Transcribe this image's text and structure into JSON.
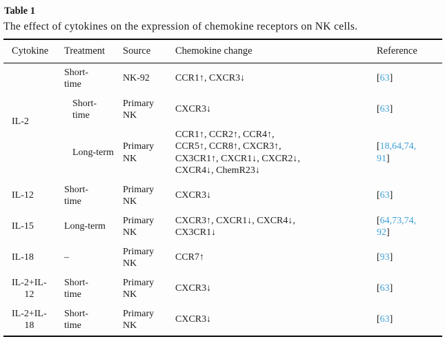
{
  "theme": {
    "link_color": "#3fa0d8",
    "text_color": "#1c1c1c"
  },
  "title": "Table 1",
  "caption": "The effect of cytokines on the expression of chemokine receptors on NK cells.",
  "columns": [
    "Cytokine",
    "Treatment",
    "Source",
    "Chemokine change",
    "Reference"
  ],
  "rows": [
    {
      "cytokine": [
        "IL-2"
      ],
      "treatment": [
        "Short-",
        "time"
      ],
      "source": [
        "NK-92"
      ],
      "change": [
        "CCR1↑, CXCR3↓"
      ],
      "ref": [
        [
          "63"
        ]
      ]
    },
    {
      "treatment": [
        "Short-",
        "time"
      ],
      "source": [
        "Primary",
        "NK"
      ],
      "change": [
        "CXCR3↓"
      ],
      "ref": [
        [
          "63"
        ]
      ]
    },
    {
      "treatment": [
        "Long-term"
      ],
      "source": [
        "Primary",
        "NK"
      ],
      "change": [
        "CCR1↑, CCR2↑, CCR4↑,",
        "CCR5↑, CCR8↑, CXCR3↑,",
        "CX3CR1↑, CXCR1↓, CXCR2↓,",
        "CXCR4↓, ChemR23↓"
      ],
      "ref": [
        [
          "18",
          "64",
          "74"
        ],
        [
          "91"
        ]
      ]
    },
    {
      "cytokine": [
        "IL-12"
      ],
      "treatment": [
        "Short-",
        "time"
      ],
      "source": [
        "Primary",
        "NK"
      ],
      "change": [
        "CXCR3↓"
      ],
      "ref": [
        [
          "63"
        ]
      ]
    },
    {
      "cytokine": [
        "IL-15"
      ],
      "treatment": [
        "Long-term"
      ],
      "source": [
        "Primary",
        "NK"
      ],
      "change": [
        "CXCR3↑, CXCR1↓, CXCR4↓,",
        "CX3CR1↓"
      ],
      "ref": [
        [
          "64",
          "73",
          "74"
        ],
        [
          "92"
        ]
      ]
    },
    {
      "cytokine": [
        "IL-18"
      ],
      "treatment": [
        "–"
      ],
      "source": [
        "Primary",
        "NK"
      ],
      "change": [
        "CCR7↑"
      ],
      "ref": [
        [
          "93"
        ]
      ]
    },
    {
      "cytokine": [
        "IL-2+IL-",
        "12"
      ],
      "treatment": [
        "Short-",
        "time"
      ],
      "source": [
        "Primary",
        "NK"
      ],
      "change": [
        "CXCR3↓"
      ],
      "ref": [
        [
          "63"
        ]
      ]
    },
    {
      "cytokine": [
        "IL-2+IL-",
        "18"
      ],
      "treatment": [
        "Short-",
        "time"
      ],
      "source": [
        "Primary",
        "NK"
      ],
      "change": [
        "CXCR3↓"
      ],
      "ref": [
        [
          "63"
        ]
      ]
    }
  ]
}
